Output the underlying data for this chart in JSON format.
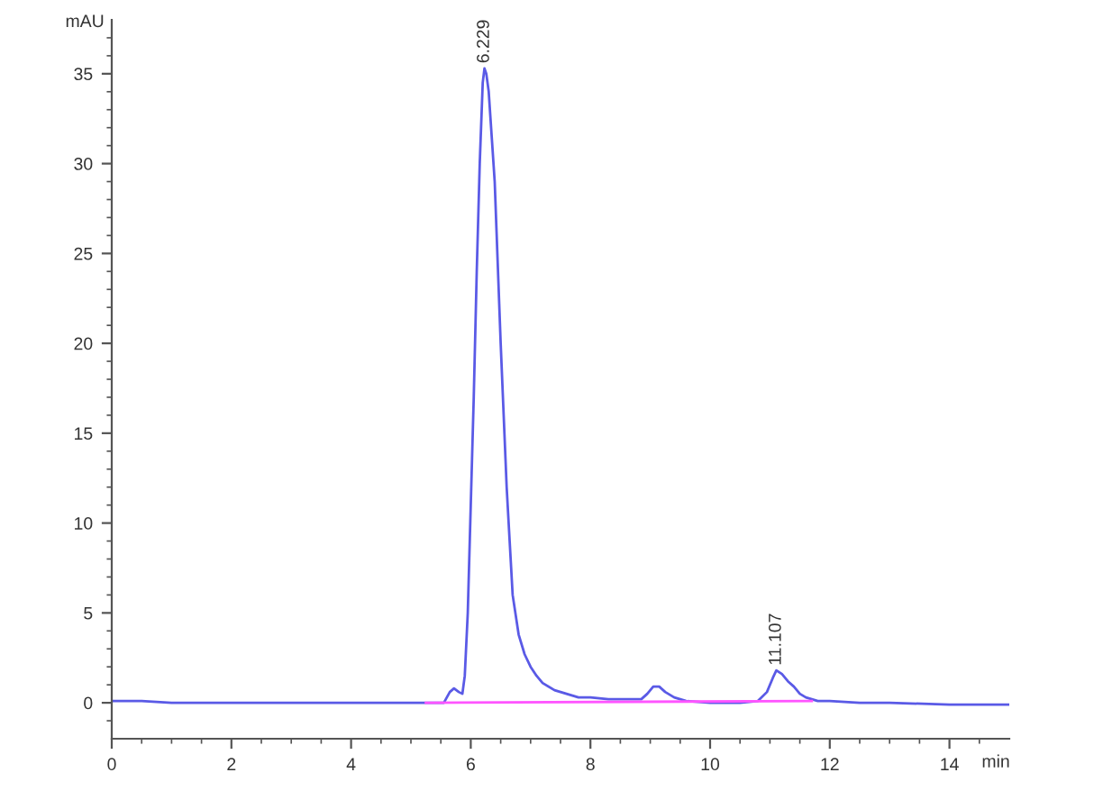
{
  "chart_data": {
    "type": "line",
    "xlabel": "min",
    "ylabel": "mAU",
    "xlim": [
      0,
      15
    ],
    "ylim": [
      -2,
      38
    ],
    "xticks": [
      0,
      {
        "value": 0.5,
        "label": null
      },
      {
        "value": 1,
        "label": null
      },
      {
        "value": 1.5,
        "label": null
      },
      2,
      {
        "value": 2.5,
        "label": null
      },
      {
        "value": 3,
        "label": null
      },
      {
        "value": 3.5,
        "label": null
      },
      4,
      {
        "value": 4.5,
        "label": null
      },
      {
        "value": 5,
        "label": null
      },
      {
        "value": 5.5,
        "label": null
      },
      6,
      {
        "value": 6.5,
        "label": null
      },
      {
        "value": 7,
        "label": null
      },
      {
        "value": 7.5,
        "label": null
      },
      8,
      {
        "value": 8.5,
        "label": null
      },
      {
        "value": 9,
        "label": null
      },
      {
        "value": 9.5,
        "label": null
      },
      10,
      {
        "value": 10.5,
        "label": null
      },
      {
        "value": 11,
        "label": null
      },
      {
        "value": 11.5,
        "label": null
      },
      12,
      {
        "value": 12.5,
        "label": null
      },
      {
        "value": 13,
        "label": null
      },
      {
        "value": 13.5,
        "label": null
      },
      14,
      {
        "value": 14.5,
        "label": null
      }
    ],
    "yticks": [
      {
        "value": -1,
        "label": null
      },
      0,
      {
        "value": 1,
        "label": null
      },
      {
        "value": 2,
        "label": null
      },
      {
        "value": 3,
        "label": null
      },
      {
        "value": 4,
        "label": null
      },
      5,
      {
        "value": 6,
        "label": null
      },
      {
        "value": 7,
        "label": null
      },
      {
        "value": 8,
        "label": null
      },
      {
        "value": 9,
        "label": null
      },
      10,
      {
        "value": 11,
        "label": null
      },
      {
        "value": 12,
        "label": null
      },
      {
        "value": 13,
        "label": null
      },
      {
        "value": 14,
        "label": null
      },
      15,
      {
        "value": 16,
        "label": null
      },
      {
        "value": 17,
        "label": null
      },
      {
        "value": 18,
        "label": null
      },
      {
        "value": 19,
        "label": null
      },
      20,
      {
        "value": 21,
        "label": null
      },
      {
        "value": 22,
        "label": null
      },
      {
        "value": 23,
        "label": null
      },
      {
        "value": 24,
        "label": null
      },
      25,
      {
        "value": 26,
        "label": null
      },
      {
        "value": 27,
        "label": null
      },
      {
        "value": 28,
        "label": null
      },
      {
        "value": 29,
        "label": null
      },
      30,
      {
        "value": 31,
        "label": null
      },
      {
        "value": 32,
        "label": null
      },
      {
        "value": 33,
        "label": null
      },
      {
        "value": 34,
        "label": null
      },
      35,
      {
        "value": 36,
        "label": null
      },
      {
        "value": 37,
        "label": null
      }
    ],
    "marker": "none",
    "line_style": "solid",
    "series": [
      {
        "color": "#5a5ae6",
        "x": [
          0,
          0.5,
          1.0,
          2,
          3,
          4,
          5,
          5.3,
          5.55,
          5.65,
          5.72,
          5.8,
          5.86,
          5.9,
          5.95,
          6.0,
          6.05,
          6.1,
          6.15,
          6.2,
          6.229,
          6.26,
          6.3,
          6.35,
          6.4,
          6.45,
          6.5,
          6.55,
          6.6,
          6.65,
          6.7,
          6.8,
          6.9,
          7.0,
          7.1,
          7.2,
          7.4,
          7.6,
          7.8,
          8.0,
          8.3,
          8.6,
          8.85,
          8.95,
          9.05,
          9.1,
          9.15,
          9.25,
          9.4,
          9.6,
          10.0,
          10.5,
          10.8,
          10.95,
          11.05,
          11.107,
          11.2,
          11.3,
          11.4,
          11.5,
          11.6,
          11.8,
          12.0,
          12.5,
          13,
          14,
          15
        ],
        "values": [
          0.1,
          0.1,
          0.0,
          0.0,
          0.0,
          0.0,
          0.0,
          0.0,
          0.0,
          0.6,
          0.8,
          0.6,
          0.5,
          1.5,
          5,
          11,
          17,
          24,
          30,
          34.5,
          35.3,
          35.0,
          34,
          31.5,
          29,
          24.5,
          20,
          16,
          12,
          9,
          6,
          3.8,
          2.7,
          2.0,
          1.5,
          1.1,
          0.7,
          0.5,
          0.3,
          0.3,
          0.2,
          0.2,
          0.2,
          0.5,
          0.9,
          0.9,
          0.9,
          0.6,
          0.3,
          0.1,
          0.0,
          0.0,
          0.1,
          0.6,
          1.4,
          1.8,
          1.6,
          1.2,
          0.9,
          0.5,
          0.3,
          0.1,
          0.1,
          0.0,
          0.0,
          -0.1,
          -0.1
        ]
      },
      {
        "color": "#ff55ff",
        "x": [
          5.25,
          11.7
        ],
        "values": [
          0.0,
          0.1
        ]
      }
    ],
    "annotations": [
      {
        "text": "6.229",
        "x": 6.229,
        "y": 35.3
      },
      {
        "text": "11.107",
        "x": 11.107,
        "y": 1.8
      }
    ]
  }
}
